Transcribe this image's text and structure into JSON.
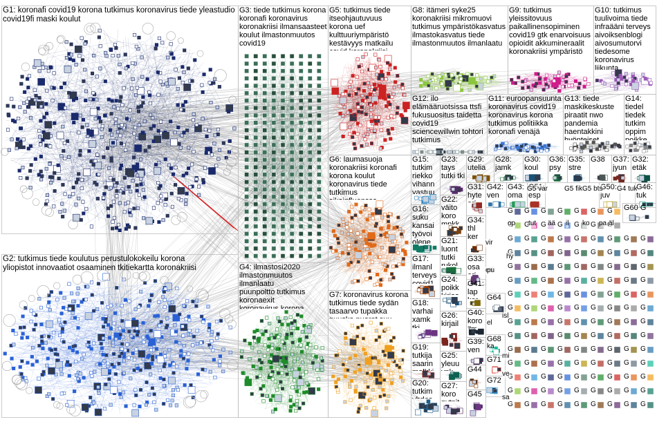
{
  "groups": [
    {
      "id": "G1",
      "label": "G1: koronafi covid19 korona tutkimus koronavirus tiede yleastudio covid19fi maski koulut",
      "color": "#1a2a6c"
    },
    {
      "id": "G2",
      "label": "G2: tutkimus tiede koulutus perustulokokeilu korona yliopistot innovaatiot osaaminen tkitiekartta koronakriisi",
      "color": "#2a62d6"
    },
    {
      "id": "G3",
      "label": "G3: tiede tutkimus korona koronafi koronavirus koronakriisi ilmansaasteet koulut ilmastonmuutos covid19",
      "color": "#4d7a66"
    },
    {
      "id": "G4",
      "label": "G4: ilmastosi2020 ilmastonmuutos ilmanlaatu puunpoltto tutkimus koronaexit koronavirus korona aivot ilmasto",
      "color": "#1e8c2a"
    },
    {
      "id": "G5",
      "label": "G5: tutkimus tiede itseohjautuvuus korona uef kulttuuriympäristö kestävyys matkailu covid koronakriisi",
      "color": "#cc2222"
    },
    {
      "id": "G6",
      "label": "G6: laumasuoja koronakriisi koronafi korona koulut koronavirus tiede tutkimus sikainfluenssa riskiryhmäläinen",
      "color": "#e06a1a"
    },
    {
      "id": "G7",
      "label": "G7: koronavirus korona tutkimus tiede sydän tasaarvo tupakka nuuska nuoret suu",
      "color": "#f0a020"
    },
    {
      "id": "G8",
      "label": "G8: itämeri syke25 koronakriisi mikromuovi tutkimus ympäristökasvatus ilmastokasvatus tiede ilmastonmuutos ilmanlaatu",
      "color": "#8cc63f"
    },
    {
      "id": "G9",
      "label": "G9: tutkimus yleissitovuus paikallinensopiminen covid19 gtk enarvoisuus opioidit akkumineraalit koronakriisi ympäristö",
      "color": "#d01c8b"
    },
    {
      "id": "G10",
      "label": "G10: tutkimus tuulivoima tiede infraääni terveys aivoiksenblogi aivosumutorvi tiedesome koronavirus liikunta",
      "color": "#9b59b6"
    },
    {
      "id": "G11",
      "label": "G11: euroopansuunta koronavirus covid19 koronavirus korona tutkimus politiikka koronafi venäjä",
      "color": "#3c78d8"
    },
    {
      "id": "G12",
      "label": "G12: ilo elämääruotsissa ttsfi fukusuositus taidetta covid19 sciencewillwin tohtori tutkimus",
      "color": "#7f8c8d"
    },
    {
      "id": "G13",
      "label": "G13: tiede maskikeskuste piraatit nwo pandemia haentakkini hyönteiset",
      "color": "#555"
    },
    {
      "id": "G14",
      "label": "G14: tiedel tiedek tutkim oppim poikke",
      "color": "#888"
    },
    {
      "id": "G15",
      "label": "G15: tutkim riekko vihann vastuu",
      "color": "#2e86c1"
    },
    {
      "id": "G16",
      "label": "G16: suku kansai työvoi olene",
      "color": "#117a65"
    },
    {
      "id": "G17",
      "label": "G17: ilmanl terveys covid1",
      "color": "#a04000"
    },
    {
      "id": "G18",
      "label": "G18: varhai xamk tki",
      "color": "#6c3483"
    },
    {
      "id": "G19",
      "label": "G19: tutkija saarin malkki",
      "color": "#b03a2e"
    },
    {
      "id": "G20",
      "label": "G20: tutkim yhdes",
      "color": "#1f618d"
    },
    {
      "id": "G21",
      "label": "G21: luont tutki rukol",
      "color": "#196f3d"
    },
    {
      "id": "G22",
      "label": "G22: väito koro mpkk",
      "color": "#784212"
    },
    {
      "id": "G23",
      "label": "G23: tays tutki tki",
      "color": "#5b2c6f"
    },
    {
      "id": "G24",
      "label": "G24: poikk kirjas",
      "color": "#1b4f72"
    },
    {
      "id": "G25",
      "label": "G25: yleuu vnk",
      "color": "#0e6251"
    },
    {
      "id": "G26",
      "label": "G26: kirjail",
      "color": "#7b241c"
    },
    {
      "id": "G27",
      "label": "G27: koro nytnit",
      "color": "#4a235a"
    },
    {
      "id": "G28",
      "label": "G28: jamk",
      "color": "#145a32"
    },
    {
      "id": "G29",
      "label": "G29: utelia",
      "color": "#7e5109"
    },
    {
      "id": "G30",
      "label": "G30: koul",
      "color": "#1a5276"
    },
    {
      "id": "G31",
      "label": "G31: hyte eri",
      "color": "#922b21"
    },
    {
      "id": "G32",
      "label": "G32: etäk",
      "color": "#0b5345"
    },
    {
      "id": "G33",
      "label": "G33: osa eri",
      "color": "#633974"
    },
    {
      "id": "G34",
      "label": "G34: thl ker",
      "color": "#6e2c00"
    },
    {
      "id": "G35",
      "label": "G35: stre",
      "color": "#154360"
    },
    {
      "id": "G36",
      "label": "G36: psy",
      "color": "#186a3b"
    },
    {
      "id": "G37",
      "label": "G37: jyun",
      "color": "#78281f"
    },
    {
      "id": "G38",
      "label": "G38",
      "color": "#4d5656"
    },
    {
      "id": "G39",
      "label": "G39: ven",
      "color": "#512e5f"
    },
    {
      "id": "G40",
      "label": "G40: koro ilm",
      "color": "#1b2631"
    },
    {
      "id": "G41",
      "label": "G41: lap ker",
      "color": "#7d6608"
    },
    {
      "id": "G42",
      "label": "G42: ven",
      "color": "#2874a6"
    },
    {
      "id": "G43",
      "label": "G43: oma",
      "color": "#239b56"
    },
    {
      "id": "G44",
      "label": "G44",
      "color": "#873600"
    },
    {
      "id": "G45",
      "label": "G45",
      "color": "#6c3483"
    },
    {
      "id": "G46",
      "label": "G46: tuk",
      "color": "#148f77"
    },
    {
      "id": "G50",
      "label": "G50: juv",
      "color": "#b7950b"
    },
    {
      "id": "G51",
      "label": "G51: esp",
      "color": "#a93226"
    },
    {
      "id": "G60",
      "label": "G60 G",
      "color": "#2e4053"
    },
    {
      "id": "G64",
      "label": "G64",
      "color": "#5d6d7e"
    },
    {
      "id": "G68",
      "label": "G68",
      "color": "#1abc9c"
    },
    {
      "id": "G71",
      "label": "G71",
      "color": "#e74c3c"
    },
    {
      "id": "G72",
      "label": "G72",
      "color": "#3498db"
    }
  ],
  "misc_labels": {
    "g_short": "G",
    "vir": "vir",
    "hy": "hy",
    "eri": "eri",
    "op": "op",
    "tut": "tut",
    "aa": "ää",
    "il": "il",
    "ko": "ko",
    "pa": "pa",
    "al": "äl",
    "g4_tuk": "G4 tuk",
    "g5_var": "G5 var",
    "g5_fik": "G5 fik",
    "g5_bts": "G5 bts",
    "el": "el",
    "isl": "isl",
    "mi": "mi",
    "sa": "sa",
    "ve": "ve",
    "pu": "pu",
    "ka": "ka",
    "eli": "el"
  }
}
